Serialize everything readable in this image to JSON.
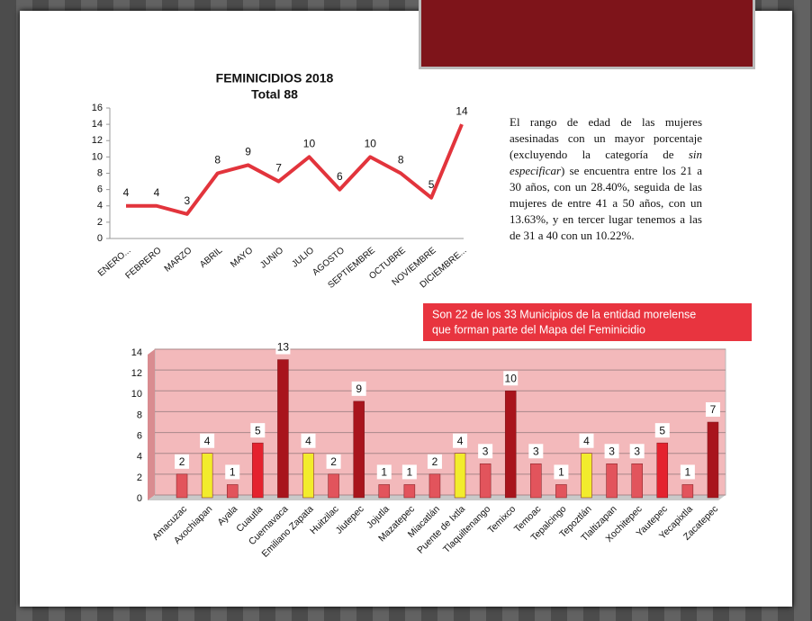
{
  "chart_data": [
    {
      "type": "line",
      "title": "FEMINICIDIOS 2018",
      "subtitle": "Total 88",
      "categories": [
        "ENERO...",
        "FEBRERO",
        "MARZO",
        "ABRIL",
        "MAYO",
        "JUNIO",
        "JULIO",
        "AGOSTO",
        "SEPTIEMBRE",
        "OCTUBRE",
        "NOVIEMBRE",
        "DICIEMBRE..."
      ],
      "values": [
        4,
        4,
        3,
        8,
        9,
        7,
        10,
        6,
        10,
        8,
        5,
        14
      ],
      "color": "#e2343c",
      "ylim": [
        0,
        16
      ],
      "yticks": [
        0,
        2,
        4,
        6,
        8,
        10,
        12,
        14,
        16
      ]
    },
    {
      "type": "bar",
      "annotation": [
        "Son  22 de los 33  Municipios de la entidad morelense",
        "que forman parte del Mapa del Feminicidio"
      ],
      "categories": [
        "Amacuzac",
        "Axochiapan",
        "Ayala",
        "Cuautla",
        "Cuernavaca",
        "Emiliano Zapata",
        "Huitzilac",
        "Jiutepec",
        "Jojutla",
        "Mazatepec",
        "Miacatlán",
        "Puente de Ixtla",
        "Tlaquiltenango",
        "Temixco",
        "Temoac",
        "Tepalcingo",
        "Tepoztlán",
        "Tlaltizapan",
        "Xochitepec",
        "Yautepec",
        "Yecapixtla",
        "Zacatepec"
      ],
      "values": [
        2,
        4,
        1,
        5,
        13,
        4,
        2,
        9,
        1,
        1,
        2,
        4,
        3,
        10,
        3,
        1,
        4,
        3,
        3,
        5,
        1,
        7
      ],
      "colors": [
        "#e2545c",
        "#f2ec2c",
        "#e2545c",
        "#e4222e",
        "#a8141c",
        "#f2ec2c",
        "#e2545c",
        "#a8141c",
        "#e2545c",
        "#e2545c",
        "#e2545c",
        "#f2ec2c",
        "#e2545c",
        "#a8141c",
        "#e2545c",
        "#e2545c",
        "#f2ec2c",
        "#e2545c",
        "#e2545c",
        "#e4222e",
        "#e2545c",
        "#a8141c"
      ],
      "ylim": [
        0,
        14
      ],
      "yticks": [
        0,
        2,
        4,
        6,
        8,
        10,
        12,
        14
      ],
      "grid": true
    }
  ],
  "text": [
    "El rango de edad de las mujeres asesinadas con un mayor porcentaje (excluyendo la categoría de ",
    "sin especificar",
    ") se encuentra entre los 21 a 30 años, con un 28.40%, seguida de las mujeres de entre 41 a 50 años, con un 13.63%, y en tercer lugar tenemos a las de 31 a 40 con un 10.22%."
  ]
}
